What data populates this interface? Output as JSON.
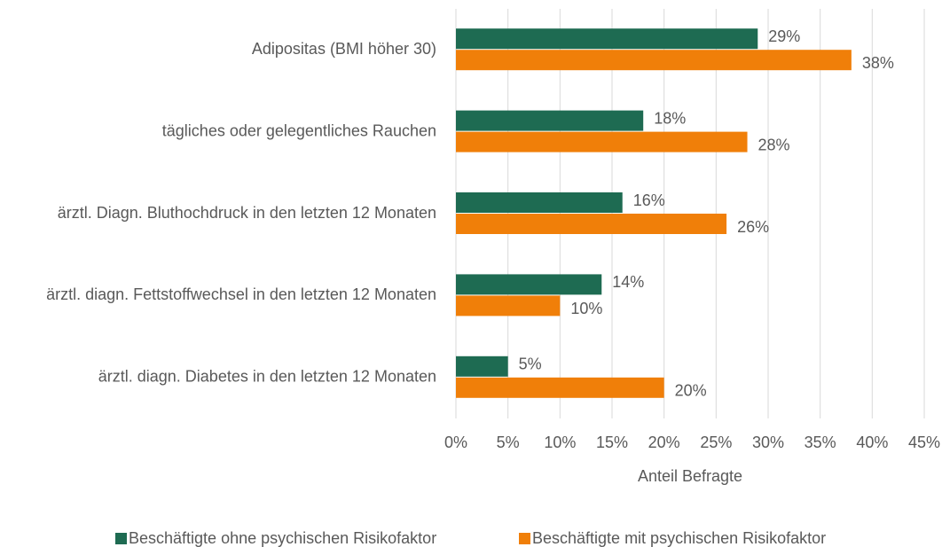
{
  "chart_data": {
    "type": "bar",
    "orientation": "horizontal",
    "categories": [
      "Adipositas (BMI höher 30)",
      "tägliches oder gelegentliches Rauchen",
      "ärztl. Diagn. Bluthochdruck in den letzten 12 Monaten",
      "ärztl. diagn. Fettstoffwechsel in den letzten 12 Monaten",
      "ärztl. diagn. Diabetes in den letzten 12 Monaten"
    ],
    "series": [
      {
        "name": "Beschäftigte ohne psychischen Risikofaktor",
        "color": "#1e6b52",
        "values": [
          29,
          18,
          16,
          14,
          5
        ],
        "value_labels": [
          "29%",
          "18%",
          "16%",
          "14%",
          "5%"
        ]
      },
      {
        "name": "Beschäftigte mit psychischen Risikofaktor",
        "color": "#f07f09",
        "values": [
          38,
          28,
          26,
          10,
          20
        ],
        "value_labels": [
          "38%",
          "28%",
          "26%",
          "10%",
          "20%"
        ]
      }
    ],
    "x_label": "Anteil Befragte",
    "xlim": [
      0,
      45
    ],
    "xticks": [
      {
        "value": 0,
        "label": "0%"
      },
      {
        "value": 5,
        "label": "5%"
      },
      {
        "value": 10,
        "label": "10%"
      },
      {
        "value": 15,
        "label": "15%"
      },
      {
        "value": 20,
        "label": "20%"
      },
      {
        "value": 25,
        "label": "25%"
      },
      {
        "value": 30,
        "label": "30%"
      },
      {
        "value": 35,
        "label": "35%"
      },
      {
        "value": 40,
        "label": "40%"
      },
      {
        "value": 45,
        "label": "45%"
      }
    ],
    "grid": true,
    "legend": "bottom"
  }
}
